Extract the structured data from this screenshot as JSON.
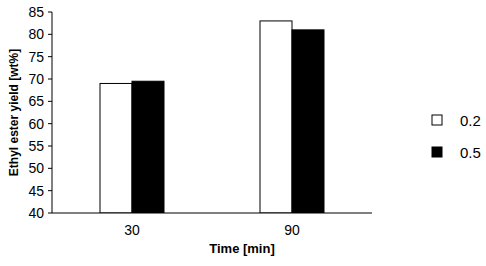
{
  "chart_data": {
    "type": "bar",
    "x_label": "Time [min]",
    "y_label": "Ethyl ester yield [wt%]",
    "categories": [
      "30",
      "90"
    ],
    "series": [
      {
        "name": "0.2",
        "color": "#ffffff",
        "values": [
          69,
          83
        ]
      },
      {
        "name": "0.5",
        "color": "#000000",
        "values": [
          69.5,
          81
        ]
      }
    ],
    "ylim": [
      40,
      85
    ],
    "yticks": [
      40,
      45,
      50,
      55,
      60,
      65,
      70,
      75,
      80,
      85
    ],
    "grid": false,
    "legend": "right"
  }
}
